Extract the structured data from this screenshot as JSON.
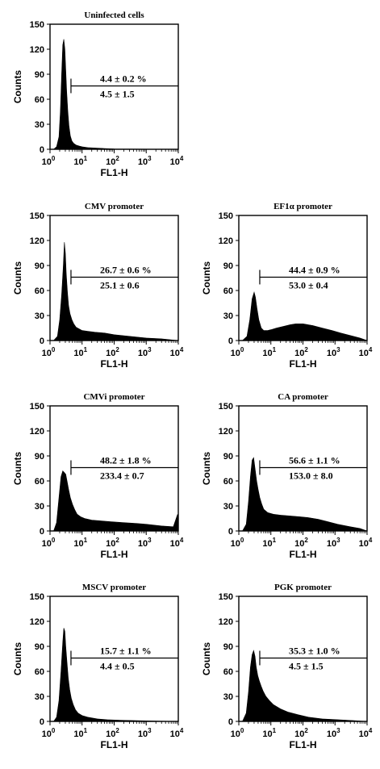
{
  "chart_data": [
    {
      "type": "area",
      "title": "Uninfected cells",
      "xlabel": "FL1-H",
      "ylabel": "Counts",
      "x_scale": "log",
      "xlim": [
        1,
        10000
      ],
      "ylim": [
        0,
        150
      ],
      "y_ticks": [
        "0",
        "30",
        "60",
        "90",
        "120",
        "150"
      ],
      "x_tick_base": "10",
      "x_tick_exponents": [
        "0",
        "1",
        "2",
        "3",
        "4"
      ],
      "gate_start": 4.5,
      "gate_end": 10000,
      "gate_level": 76,
      "stat_top": "4.4 ± 0.2 %",
      "stat_bottom": "4.5 ± 1.5",
      "series": [
        {
          "x": [
            1.3,
            1.6,
            1.9,
            2.1,
            2.3,
            2.5,
            2.7,
            2.9,
            3.1,
            3.3,
            3.6,
            3.9,
            4.3,
            4.8,
            5.5,
            6.5,
            8,
            10,
            15,
            25,
            50,
            100,
            300,
            1000,
            10000
          ],
          "values": [
            0,
            3,
            15,
            45,
            90,
            125,
            132,
            120,
            95,
            70,
            45,
            28,
            16,
            10,
            7,
            5,
            4,
            3,
            2,
            1.5,
            1,
            0.5,
            0.3,
            0.2,
            0
          ]
        }
      ]
    },
    {
      "type": "area",
      "title": "CMV promoter",
      "xlabel": "FL1-H",
      "ylabel": "Counts",
      "x_scale": "log",
      "xlim": [
        1,
        10000
      ],
      "ylim": [
        0,
        150
      ],
      "y_ticks": [
        "0",
        "30",
        "60",
        "90",
        "120",
        "150"
      ],
      "x_tick_base": "10",
      "x_tick_exponents": [
        "0",
        "1",
        "2",
        "3",
        "4"
      ],
      "gate_start": 4.5,
      "gate_end": 10000,
      "gate_level": 76,
      "stat_top": "26.7 ± 0.6 %",
      "stat_bottom": "25.1 ± 0.6",
      "series": [
        {
          "x": [
            1.3,
            1.7,
            2,
            2.3,
            2.6,
            2.8,
            3,
            3.2,
            3.5,
            3.8,
            4.2,
            4.8,
            5.5,
            6.5,
            8,
            10,
            15,
            25,
            50,
            100,
            300,
            1000,
            3000,
            10000
          ],
          "values": [
            0,
            5,
            25,
            55,
            90,
            118,
            105,
            80,
            58,
            42,
            32,
            25,
            20,
            16,
            14,
            12,
            11,
            10,
            9,
            7,
            5,
            3,
            2,
            0
          ]
        }
      ]
    },
    {
      "type": "area",
      "title": "EF1α promoter",
      "xlabel": "FL1-H",
      "ylabel": "Counts",
      "x_scale": "log",
      "xlim": [
        1,
        10000
      ],
      "ylim": [
        0,
        150
      ],
      "y_ticks": [
        "0",
        "30",
        "60",
        "90",
        "120",
        "150"
      ],
      "x_tick_base": "10",
      "x_tick_exponents": [
        "0",
        "1",
        "2",
        "3",
        "4"
      ],
      "gate_start": 4.5,
      "gate_end": 10000,
      "gate_level": 76,
      "stat_top": "44.4 ± 0.9 %",
      "stat_bottom": "53.0 ± 0.4",
      "series": [
        {
          "x": [
            1.3,
            1.8,
            2.2,
            2.6,
            3,
            3.3,
            3.7,
            4.2,
            5,
            6,
            8,
            10,
            15,
            25,
            40,
            60,
            100,
            200,
            400,
            800,
            1500,
            3000,
            6000,
            10000
          ],
          "values": [
            0,
            5,
            25,
            50,
            58,
            52,
            38,
            25,
            15,
            12,
            12,
            13,
            15,
            17,
            19,
            20,
            20,
            18,
            15,
            12,
            9,
            6,
            3,
            0
          ]
        }
      ]
    },
    {
      "type": "area",
      "title": "CMVi promoter",
      "xlabel": "FL1-H",
      "ylabel": "Counts",
      "x_scale": "log",
      "xlim": [
        1,
        10000
      ],
      "ylim": [
        0,
        150
      ],
      "y_ticks": [
        "0",
        "30",
        "60",
        "90",
        "120",
        "150"
      ],
      "x_tick_base": "10",
      "x_tick_exponents": [
        "0",
        "1",
        "2",
        "3",
        "4"
      ],
      "gate_start": 4.5,
      "gate_end": 10000,
      "gate_level": 76,
      "stat_top": "48.2 ± 1.8 %",
      "stat_bottom": "233.4 ± 0.7",
      "series": [
        {
          "x": [
            1.3,
            1.6,
            1.9,
            2.2,
            2.5,
            2.8,
            3.1,
            3.4,
            3.8,
            4.3,
            5,
            6,
            7,
            9,
            12,
            20,
            40,
            80,
            200,
            500,
            1000,
            3000,
            7000,
            9500,
            10000
          ],
          "values": [
            0,
            10,
            40,
            65,
            72,
            70,
            68,
            60,
            50,
            40,
            32,
            25,
            20,
            17,
            15,
            13,
            12,
            11,
            10,
            9,
            8,
            6,
            5,
            20,
            0
          ]
        }
      ]
    },
    {
      "type": "area",
      "title": "CA promoter",
      "xlabel": "FL1-H",
      "ylabel": "Counts",
      "x_scale": "log",
      "xlim": [
        1,
        10000
      ],
      "ylim": [
        0,
        150
      ],
      "y_ticks": [
        "0",
        "30",
        "60",
        "90",
        "120",
        "150"
      ],
      "x_tick_base": "10",
      "x_tick_exponents": [
        "0",
        "1",
        "2",
        "3",
        "4"
      ],
      "gate_start": 4.5,
      "gate_end": 10000,
      "gate_level": 76,
      "stat_top": "56.6 ± 1.1 %",
      "stat_bottom": "153.0 ± 8.0",
      "series": [
        {
          "x": [
            1.3,
            1.7,
            2,
            2.3,
            2.6,
            2.9,
            3.2,
            3.6,
            4,
            4.5,
            5.2,
            6,
            8,
            12,
            20,
            40,
            80,
            150,
            300,
            600,
            1200,
            3000,
            6000,
            10000
          ],
          "values": [
            0,
            8,
            35,
            65,
            85,
            88,
            75,
            60,
            50,
            40,
            32,
            26,
            22,
            20,
            19,
            18,
            17,
            16,
            14,
            11,
            8,
            5,
            3,
            0
          ]
        }
      ]
    },
    {
      "type": "area",
      "title": "MSCV promoter",
      "xlabel": "FL1-H",
      "ylabel": "Counts",
      "x_scale": "log",
      "xlim": [
        1,
        10000
      ],
      "ylim": [
        0,
        150
      ],
      "y_ticks": [
        "0",
        "30",
        "60",
        "90",
        "120",
        "150"
      ],
      "x_tick_base": "10",
      "x_tick_exponents": [
        "0",
        "1",
        "2",
        "3",
        "4"
      ],
      "gate_start": 4.5,
      "gate_end": 10000,
      "gate_level": 76,
      "stat_top": "15.7 ± 1.1 %",
      "stat_bottom": "4.4 ± 0.5",
      "series": [
        {
          "x": [
            1.3,
            1.6,
            1.9,
            2.2,
            2.5,
            2.7,
            2.9,
            3.1,
            3.4,
            3.7,
            4.1,
            4.6,
            5.3,
            6.2,
            7.5,
            10,
            15,
            30,
            60,
            150,
            500,
            2000,
            10000
          ],
          "values": [
            0,
            5,
            25,
            60,
            95,
            112,
            108,
            90,
            70,
            52,
            38,
            28,
            20,
            14,
            10,
            7,
            5,
            3,
            2,
            1.5,
            1,
            0.5,
            0
          ]
        }
      ]
    },
    {
      "type": "area",
      "title": "PGK promoter",
      "xlabel": "FL1-H",
      "ylabel": "Counts",
      "x_scale": "log",
      "xlim": [
        1,
        10000
      ],
      "ylim": [
        0,
        150
      ],
      "y_ticks": [
        "0",
        "30",
        "60",
        "90",
        "120",
        "150"
      ],
      "x_tick_base": "10",
      "x_tick_exponents": [
        "0",
        "1",
        "2",
        "3",
        "4"
      ],
      "gate_start": 4.5,
      "gate_end": 10000,
      "gate_level": 76,
      "stat_top": "35.3 ± 1.0 %",
      "stat_bottom": "4.5 ± 1.5",
      "series": [
        {
          "x": [
            1.3,
            1.7,
            2,
            2.3,
            2.6,
            2.9,
            3.2,
            3.5,
            3.9,
            4.4,
            5,
            5.8,
            7,
            9,
            12,
            20,
            35,
            70,
            150,
            400,
            1200,
            4000,
            10000
          ],
          "values": [
            0,
            10,
            35,
            65,
            80,
            85,
            78,
            65,
            55,
            48,
            42,
            36,
            30,
            25,
            20,
            15,
            11,
            8,
            5,
            3,
            2,
            1,
            0
          ]
        }
      ]
    }
  ]
}
